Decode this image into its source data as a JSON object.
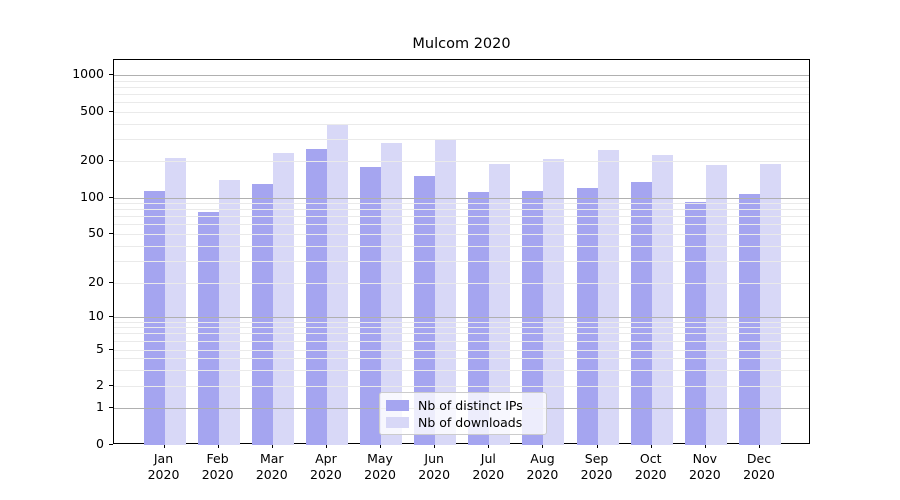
{
  "chart_data": {
    "type": "bar",
    "title": "Mulcom 2020",
    "categories": [
      "Jan",
      "Feb",
      "Mar",
      "Apr",
      "May",
      "Jun",
      "Jul",
      "Aug",
      "Sep",
      "Oct",
      "Nov",
      "Dec"
    ],
    "x_tick_second_line": "2020",
    "series": [
      {
        "name": "Nb of distinct IPs",
        "color": "#a5a5f0",
        "values": [
          113,
          76,
          130,
          248,
          180,
          151,
          112,
          114,
          120,
          135,
          92,
          107
        ]
      },
      {
        "name": "Nb of downloads",
        "color": "#d8d8f7",
        "values": [
          212,
          140,
          234,
          398,
          280,
          296,
          190,
          208,
          246,
          222,
          185,
          189
        ]
      }
    ],
    "y_axis": {
      "scale": "symlog",
      "ticks": [
        0,
        1,
        2,
        5,
        10,
        20,
        50,
        100,
        200,
        500,
        1000
      ],
      "range": [
        0,
        1300
      ]
    },
    "legend": {
      "position": "lower center",
      "entries": [
        "Nb of distinct IPs",
        "Nb of downloads"
      ]
    },
    "grid": {
      "major": true,
      "minor": true
    },
    "colors": {
      "major_grid": "#b0b0b0",
      "minor_grid": "#eaeaea",
      "spine": "#000000",
      "background": "#ffffff",
      "legend_border": "#cccccc"
    }
  }
}
